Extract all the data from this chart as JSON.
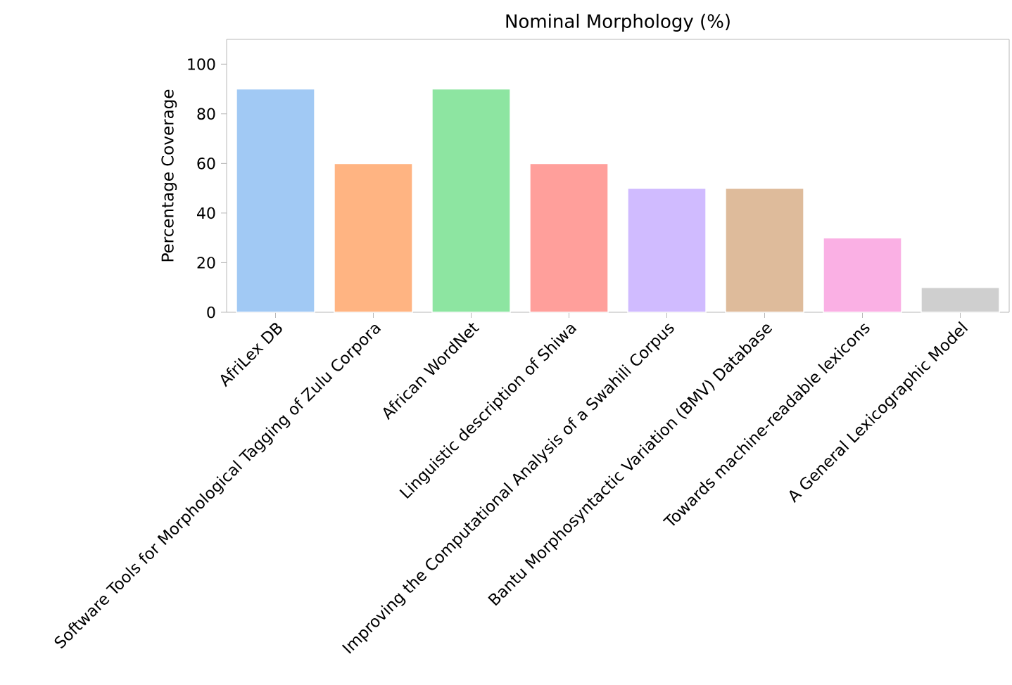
{
  "chart_data": {
    "type": "bar",
    "title": "Nominal Morphology (%)",
    "ylabel": "Percentage Coverage",
    "categories": [
      "AfriLex DB",
      "Software Tools for Morphological Tagging of Zulu Corpora",
      "African WordNet",
      "Linguistic description of Shiwa",
      "Improving the Computational Analysis of a Swahili Corpus",
      "Bantu Morphosyntactic Variation (BMV) Database",
      "Towards machine-readable lexicons",
      "A General Lexicographic Model"
    ],
    "values": [
      90,
      60,
      90,
      60,
      50,
      50,
      30,
      10
    ],
    "colors": [
      "#a1c9f4",
      "#ffb482",
      "#8de5a1",
      "#ff9f9b",
      "#d0bbff",
      "#debb9b",
      "#fab0e4",
      "#cfcfcf"
    ],
    "ylim": [
      0,
      110
    ],
    "yticks": [
      0,
      20,
      40,
      60,
      80,
      100
    ],
    "grid": false
  }
}
